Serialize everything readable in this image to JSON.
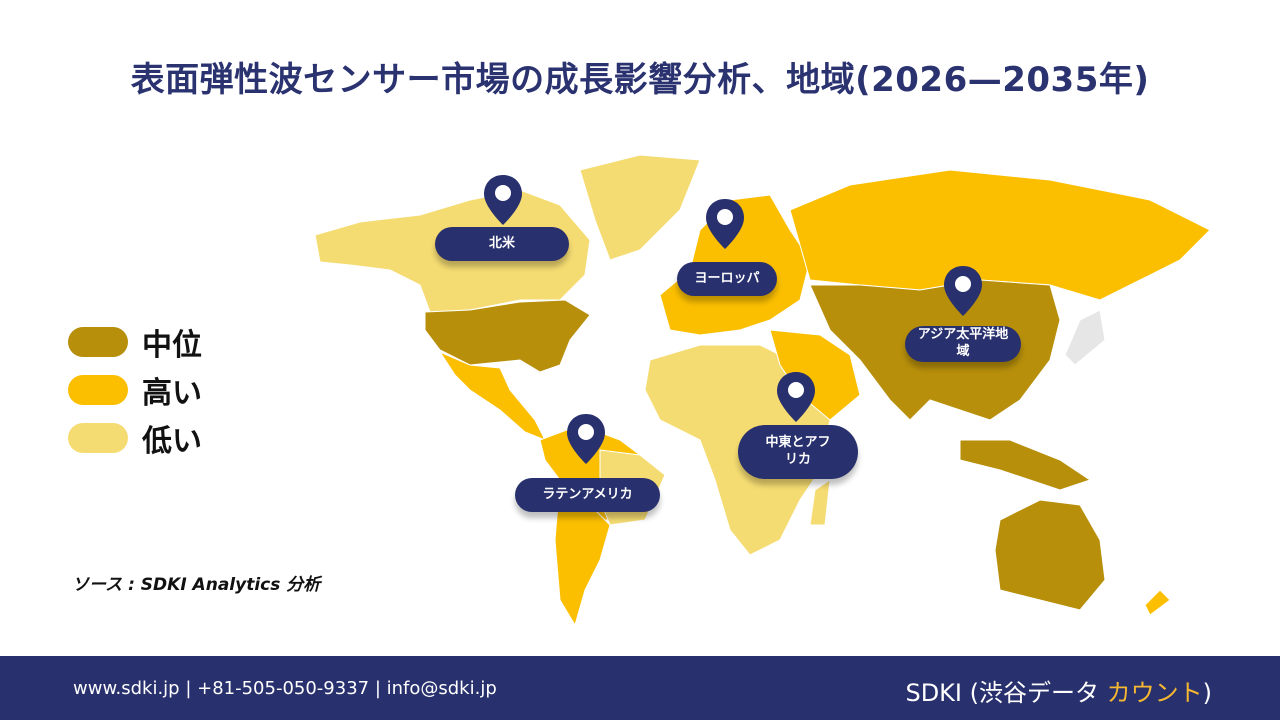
{
  "title": "表面弾性波センサー市場の成長影響分析、地域(2026—2035年)",
  "legend": [
    {
      "label": "中位",
      "color": "#b78f0b"
    },
    {
      "label": "高い",
      "color": "#fbbf00"
    },
    {
      "label": "低い",
      "color": "#f5dc72"
    }
  ],
  "source": "ソース : SDKI Analytics 分析",
  "regions": [
    {
      "label": "北米"
    },
    {
      "label": "ヨーロッパ"
    },
    {
      "label": "アジア太平洋地域"
    },
    {
      "label": "中東とアフリカ"
    },
    {
      "label": "ラテンアメリカ"
    }
  ],
  "footer": {
    "contact": "www.sdki.jp | +81-505-050-9337 | info@sdki.jp",
    "brand": "SDKI (渋谷データ ",
    "brand_accent": "カウント",
    "brand_end": ")"
  },
  "colors": {
    "navy": "#28306e",
    "medium": "#b78f0b",
    "high": "#fbbf00",
    "low": "#f5dc72"
  }
}
